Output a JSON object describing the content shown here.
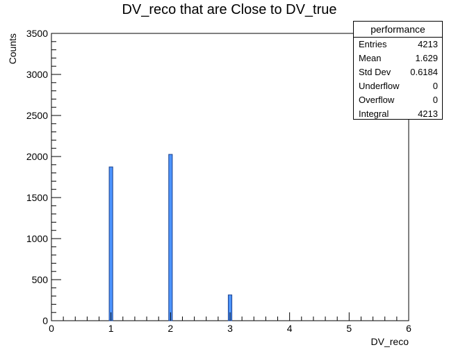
{
  "chart_data": {
    "type": "bar",
    "title": "DV_reco that are Close to DV_true",
    "xlabel": "DV_reco",
    "ylabel": "Counts",
    "xlim": [
      0,
      6
    ],
    "ylim": [
      0,
      3500
    ],
    "x_ticks": [
      "0",
      "1",
      "2",
      "3",
      "4",
      "5",
      "6"
    ],
    "y_ticks": [
      "0",
      "500",
      "1000",
      "1500",
      "2000",
      "2500",
      "3000",
      "3500"
    ],
    "bin_width": 0.1,
    "bars": [
      {
        "x": 1,
        "value": 1873
      },
      {
        "x": 2,
        "value": 2026
      },
      {
        "x": 3,
        "value": 314
      }
    ],
    "bar_color": "#4d94ff",
    "grid": false,
    "legend": "none",
    "stats_box": {
      "title": "performance",
      "rows": [
        {
          "label": "Entries",
          "value": "4213"
        },
        {
          "label": "Mean",
          "value": "1.629"
        },
        {
          "label": "Std Dev",
          "value": "0.6184"
        },
        {
          "label": "Underflow",
          "value": "0"
        },
        {
          "label": "Overflow",
          "value": "0"
        },
        {
          "label": "Integral",
          "value": "4213"
        }
      ]
    }
  }
}
